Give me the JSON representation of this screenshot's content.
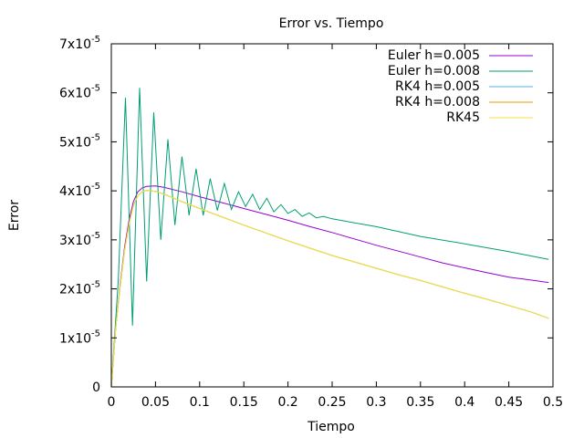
{
  "chart_data": {
    "type": "line",
    "title": "Error vs. Tiempo",
    "xlabel": "Tiempo",
    "ylabel": "Error",
    "xlim": [
      0,
      0.5
    ],
    "ylim": [
      0,
      7e-05
    ],
    "x_ticks": [
      "0",
      "0.05",
      "0.1",
      "0.15",
      "0.2",
      "0.25",
      "0.3",
      "0.35",
      "0.4",
      "0.45",
      "0.5"
    ],
    "y_ticks": [
      {
        "mant": "0",
        "exp": ""
      },
      {
        "mant": "1x10",
        "exp": "-5"
      },
      {
        "mant": "2x10",
        "exp": "-5"
      },
      {
        "mant": "3x10",
        "exp": "-5"
      },
      {
        "mant": "4x10",
        "exp": "-5"
      },
      {
        "mant": "5x10",
        "exp": "-5"
      },
      {
        "mant": "6x10",
        "exp": "-5"
      },
      {
        "mant": "7x10",
        "exp": "-5"
      }
    ],
    "grid": false,
    "legend_position": "top-right",
    "series": [
      {
        "name": "Euler h=0.005",
        "color": "#9400d3",
        "points": [
          [
            0.0,
            0.0
          ],
          [
            0.005,
            1.2e-05
          ],
          [
            0.01,
            2.1e-05
          ],
          [
            0.015,
            2.85e-05
          ],
          [
            0.02,
            3.4e-05
          ],
          [
            0.025,
            3.78e-05
          ],
          [
            0.03,
            3.98e-05
          ],
          [
            0.035,
            4.06e-05
          ],
          [
            0.04,
            4.09e-05
          ],
          [
            0.05,
            4.1e-05
          ],
          [
            0.06,
            4.07e-05
          ],
          [
            0.08,
            3.98e-05
          ],
          [
            0.1,
            3.88e-05
          ],
          [
            0.125,
            3.76e-05
          ],
          [
            0.15,
            3.64e-05
          ],
          [
            0.175,
            3.52e-05
          ],
          [
            0.2,
            3.4e-05
          ],
          [
            0.225,
            3.27e-05
          ],
          [
            0.25,
            3.15e-05
          ],
          [
            0.275,
            3.02e-05
          ],
          [
            0.3,
            2.89e-05
          ],
          [
            0.325,
            2.77e-05
          ],
          [
            0.35,
            2.65e-05
          ],
          [
            0.375,
            2.53e-05
          ],
          [
            0.4,
            2.43e-05
          ],
          [
            0.425,
            2.33e-05
          ],
          [
            0.45,
            2.24e-05
          ],
          [
            0.475,
            2.18e-05
          ],
          [
            0.495,
            2.13e-05
          ]
        ]
      },
      {
        "name": "Euler h=0.008",
        "color": "#009e73",
        "points": [
          [
            0.0,
            0.0
          ],
          [
            0.008,
            2.2e-05
          ],
          [
            0.016,
            5.9e-05
          ],
          [
            0.024,
            1.25e-05
          ],
          [
            0.032,
            6.1e-05
          ],
          [
            0.04,
            2.15e-05
          ],
          [
            0.048,
            5.6e-05
          ],
          [
            0.056,
            3e-05
          ],
          [
            0.064,
            5.05e-05
          ],
          [
            0.072,
            3.3e-05
          ],
          [
            0.08,
            4.7e-05
          ],
          [
            0.088,
            3.5e-05
          ],
          [
            0.096,
            4.45e-05
          ],
          [
            0.104,
            3.5e-05
          ],
          [
            0.112,
            4.25e-05
          ],
          [
            0.12,
            3.6e-05
          ],
          [
            0.128,
            4.15e-05
          ],
          [
            0.136,
            3.62e-05
          ],
          [
            0.144,
            3.98e-05
          ],
          [
            0.152,
            3.68e-05
          ],
          [
            0.16,
            3.93e-05
          ],
          [
            0.168,
            3.62e-05
          ],
          [
            0.176,
            3.85e-05
          ],
          [
            0.184,
            3.57e-05
          ],
          [
            0.192,
            3.72e-05
          ],
          [
            0.2,
            3.54e-05
          ],
          [
            0.208,
            3.62e-05
          ],
          [
            0.216,
            3.48e-05
          ],
          [
            0.224,
            3.55e-05
          ],
          [
            0.232,
            3.45e-05
          ],
          [
            0.24,
            3.48e-05
          ],
          [
            0.25,
            3.43e-05
          ],
          [
            0.3,
            3.27e-05
          ],
          [
            0.35,
            3.07e-05
          ],
          [
            0.4,
            2.92e-05
          ],
          [
            0.45,
            2.76e-05
          ],
          [
            0.495,
            2.6e-05
          ]
        ]
      },
      {
        "name": "RK4 h=0.005",
        "color": "#56b4e9",
        "points": [
          [
            0.0,
            0.0
          ],
          [
            0.005,
            1.2e-05
          ],
          [
            0.01,
            2.05e-05
          ],
          [
            0.015,
            2.78e-05
          ],
          [
            0.02,
            3.32e-05
          ],
          [
            0.025,
            3.7e-05
          ],
          [
            0.03,
            3.9e-05
          ],
          [
            0.035,
            3.98e-05
          ],
          [
            0.04,
            4.01e-05
          ],
          [
            0.05,
            3.99e-05
          ],
          [
            0.06,
            3.93e-05
          ],
          [
            0.08,
            3.78e-05
          ],
          [
            0.1,
            3.64e-05
          ],
          [
            0.125,
            3.47e-05
          ],
          [
            0.15,
            3.3e-05
          ],
          [
            0.175,
            3.14e-05
          ],
          [
            0.2,
            2.98e-05
          ],
          [
            0.225,
            2.83e-05
          ],
          [
            0.25,
            2.68e-05
          ],
          [
            0.275,
            2.55e-05
          ],
          [
            0.3,
            2.42e-05
          ],
          [
            0.325,
            2.29e-05
          ],
          [
            0.35,
            2.17e-05
          ],
          [
            0.375,
            2.04e-05
          ],
          [
            0.4,
            1.91e-05
          ],
          [
            0.425,
            1.79e-05
          ],
          [
            0.45,
            1.66e-05
          ],
          [
            0.475,
            1.53e-05
          ],
          [
            0.495,
            1.4e-05
          ]
        ]
      },
      {
        "name": "RK4 h=0.008",
        "color": "#e69f00",
        "points": [
          [
            0.0,
            0.0
          ],
          [
            0.005,
            1.2e-05
          ],
          [
            0.01,
            2.05e-05
          ],
          [
            0.015,
            2.78e-05
          ],
          [
            0.02,
            3.32e-05
          ],
          [
            0.025,
            3.7e-05
          ],
          [
            0.03,
            3.9e-05
          ],
          [
            0.035,
            3.98e-05
          ],
          [
            0.04,
            4.01e-05
          ],
          [
            0.05,
            3.99e-05
          ],
          [
            0.06,
            3.93e-05
          ],
          [
            0.08,
            3.78e-05
          ],
          [
            0.1,
            3.64e-05
          ],
          [
            0.125,
            3.47e-05
          ],
          [
            0.15,
            3.3e-05
          ],
          [
            0.175,
            3.14e-05
          ],
          [
            0.2,
            2.98e-05
          ],
          [
            0.225,
            2.83e-05
          ],
          [
            0.25,
            2.68e-05
          ],
          [
            0.275,
            2.55e-05
          ],
          [
            0.3,
            2.42e-05
          ],
          [
            0.325,
            2.29e-05
          ],
          [
            0.35,
            2.17e-05
          ],
          [
            0.375,
            2.04e-05
          ],
          [
            0.4,
            1.91e-05
          ],
          [
            0.425,
            1.79e-05
          ],
          [
            0.45,
            1.66e-05
          ],
          [
            0.475,
            1.53e-05
          ],
          [
            0.495,
            1.4e-05
          ]
        ]
      },
      {
        "name": "RK45",
        "color": "#f0e442",
        "points": [
          [
            0.0,
            0.0
          ],
          [
            0.005,
            1.2e-05
          ],
          [
            0.01,
            2.05e-05
          ],
          [
            0.015,
            2.78e-05
          ],
          [
            0.02,
            3.32e-05
          ],
          [
            0.025,
            3.7e-05
          ],
          [
            0.03,
            3.9e-05
          ],
          [
            0.035,
            3.98e-05
          ],
          [
            0.04,
            4.01e-05
          ],
          [
            0.05,
            3.99e-05
          ],
          [
            0.06,
            3.93e-05
          ],
          [
            0.08,
            3.78e-05
          ],
          [
            0.1,
            3.64e-05
          ],
          [
            0.125,
            3.47e-05
          ],
          [
            0.15,
            3.3e-05
          ],
          [
            0.175,
            3.14e-05
          ],
          [
            0.2,
            2.98e-05
          ],
          [
            0.225,
            2.83e-05
          ],
          [
            0.25,
            2.68e-05
          ],
          [
            0.275,
            2.55e-05
          ],
          [
            0.3,
            2.42e-05
          ],
          [
            0.325,
            2.29e-05
          ],
          [
            0.35,
            2.17e-05
          ],
          [
            0.375,
            2.04e-05
          ],
          [
            0.4,
            1.91e-05
          ],
          [
            0.425,
            1.79e-05
          ],
          [
            0.45,
            1.66e-05
          ],
          [
            0.475,
            1.53e-05
          ],
          [
            0.495,
            1.4e-05
          ]
        ]
      }
    ]
  }
}
